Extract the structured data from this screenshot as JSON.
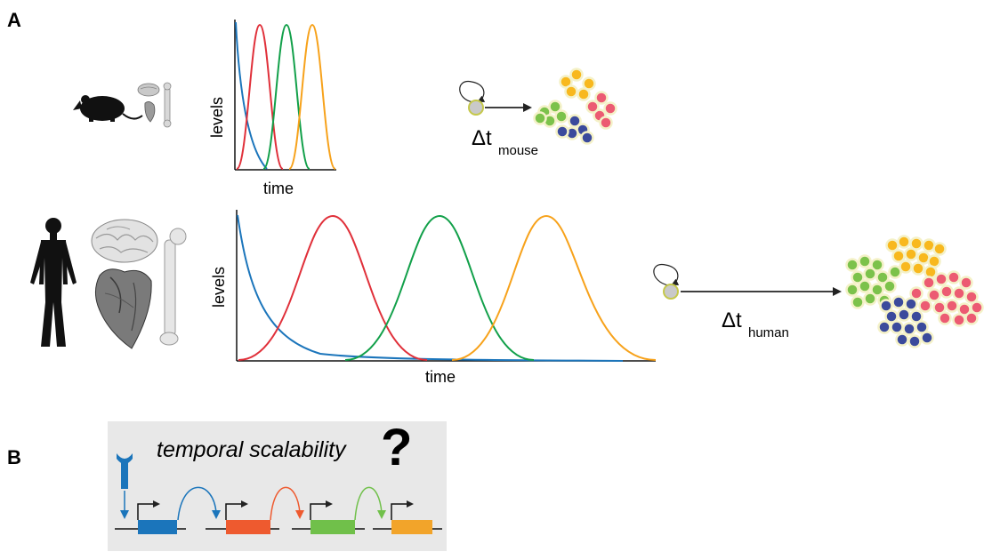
{
  "panels": {
    "a_label": "A",
    "b_label": "B"
  },
  "mouse_plot": {
    "ylabel": "levels",
    "xlabel": "time"
  },
  "human_plot": {
    "ylabel": "levels",
    "xlabel": "time"
  },
  "mouse_delta": {
    "symbol": "Δt",
    "subscript": "mouse"
  },
  "human_delta": {
    "symbol": "Δt",
    "subscript": "human"
  },
  "panel_b": {
    "title": "temporal scalability",
    "question": "?"
  },
  "colors": {
    "blue": "#1b75bb",
    "red": "#e0303a",
    "green": "#12a04a",
    "orange": "#f7a21b",
    "gene_red": "#ee5a2f",
    "gene_green": "#70c04a",
    "gene_orange": "#f2a42a",
    "cluster_red": "#ec5b72",
    "cluster_blue": "#3b4a9c",
    "cluster_green": "#7cc24b",
    "cluster_yellow": "#f8b81e",
    "panel_bg": "#e8e8e8"
  },
  "icons": [
    "mouse-silhouette-icon",
    "mouse-brain-icon",
    "mouse-heart-icon",
    "mouse-bone-icon",
    "human-silhouette-icon",
    "human-brain-icon",
    "human-heart-icon",
    "human-bone-icon",
    "receptor-icon",
    "promoter-arrow-icon",
    "self-renewal-loop-icon",
    "progenitor-cell-icon"
  ]
}
